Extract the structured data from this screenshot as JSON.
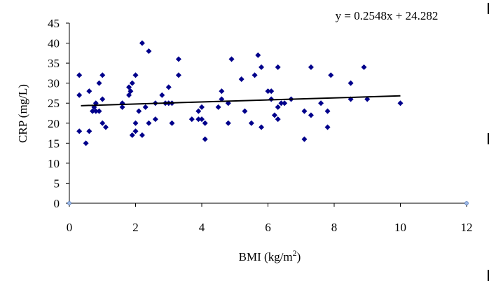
{
  "chart_data": {
    "type": "scatter",
    "xlabel_main": "BMI (kg/m",
    "xlabel_sup": "2",
    "xlabel_tail": ")",
    "ylabel": "CRP (mg/L)",
    "xlim": [
      0,
      12
    ],
    "ylim": [
      0,
      45
    ],
    "x_ticks": [
      0,
      2,
      4,
      6,
      8,
      10,
      12
    ],
    "y_ticks": [
      0,
      5,
      10,
      15,
      20,
      25,
      30,
      35,
      40,
      45
    ],
    "grid": false,
    "marker_color": "#00008B",
    "trendline": {
      "equation": "y = 0.2548x + 24.282",
      "slope": 0.2548,
      "intercept": 24.282,
      "x_range": [
        0.35,
        10
      ],
      "color": "#000000"
    },
    "axis_end_points": [
      [
        0,
        0
      ],
      [
        12,
        0
      ]
    ],
    "points": [
      [
        0.3,
        32
      ],
      [
        0.3,
        27
      ],
      [
        0.3,
        18
      ],
      [
        0.5,
        15
      ],
      [
        0.6,
        18
      ],
      [
        0.6,
        28
      ],
      [
        0.7,
        23
      ],
      [
        0.75,
        24
      ],
      [
        0.8,
        23
      ],
      [
        0.8,
        25
      ],
      [
        0.9,
        30
      ],
      [
        0.9,
        23
      ],
      [
        1.0,
        32
      ],
      [
        1.0,
        26
      ],
      [
        1.0,
        20
      ],
      [
        1.1,
        19
      ],
      [
        1.6,
        25
      ],
      [
        1.6,
        24
      ],
      [
        1.8,
        29
      ],
      [
        1.8,
        27
      ],
      [
        1.85,
        28
      ],
      [
        1.9,
        30
      ],
      [
        1.9,
        17
      ],
      [
        2.0,
        32
      ],
      [
        2.0,
        20
      ],
      [
        2.0,
        18
      ],
      [
        2.1,
        23
      ],
      [
        2.2,
        40
      ],
      [
        2.2,
        17
      ],
      [
        2.3,
        24
      ],
      [
        2.4,
        38
      ],
      [
        2.4,
        20
      ],
      [
        2.6,
        25
      ],
      [
        2.6,
        21
      ],
      [
        2.8,
        27
      ],
      [
        2.9,
        25
      ],
      [
        3.0,
        29
      ],
      [
        3.0,
        25
      ],
      [
        3.1,
        25
      ],
      [
        3.1,
        20
      ],
      [
        3.3,
        36
      ],
      [
        3.3,
        32
      ],
      [
        3.7,
        21
      ],
      [
        3.9,
        23
      ],
      [
        3.9,
        21
      ],
      [
        4.0,
        24
      ],
      [
        4.0,
        21
      ],
      [
        4.1,
        16
      ],
      [
        4.1,
        20
      ],
      [
        4.5,
        24
      ],
      [
        4.6,
        28
      ],
      [
        4.6,
        26
      ],
      [
        4.8,
        25
      ],
      [
        4.8,
        20
      ],
      [
        4.9,
        36
      ],
      [
        5.2,
        31
      ],
      [
        5.3,
        23
      ],
      [
        5.5,
        20
      ],
      [
        5.6,
        32
      ],
      [
        5.7,
        37
      ],
      [
        5.8,
        34
      ],
      [
        5.8,
        19
      ],
      [
        6.0,
        28
      ],
      [
        6.1,
        28
      ],
      [
        6.1,
        26
      ],
      [
        6.2,
        22
      ],
      [
        6.3,
        34
      ],
      [
        6.3,
        24
      ],
      [
        6.3,
        21
      ],
      [
        6.4,
        25
      ],
      [
        6.5,
        25
      ],
      [
        6.7,
        26
      ],
      [
        7.1,
        23
      ],
      [
        7.1,
        16
      ],
      [
        7.3,
        34
      ],
      [
        7.3,
        22
      ],
      [
        7.6,
        25
      ],
      [
        7.8,
        23
      ],
      [
        7.8,
        19
      ],
      [
        7.9,
        32
      ],
      [
        8.5,
        30
      ],
      [
        8.5,
        26
      ],
      [
        8.9,
        34
      ],
      [
        9.0,
        26
      ],
      [
        10.0,
        25
      ]
    ]
  }
}
